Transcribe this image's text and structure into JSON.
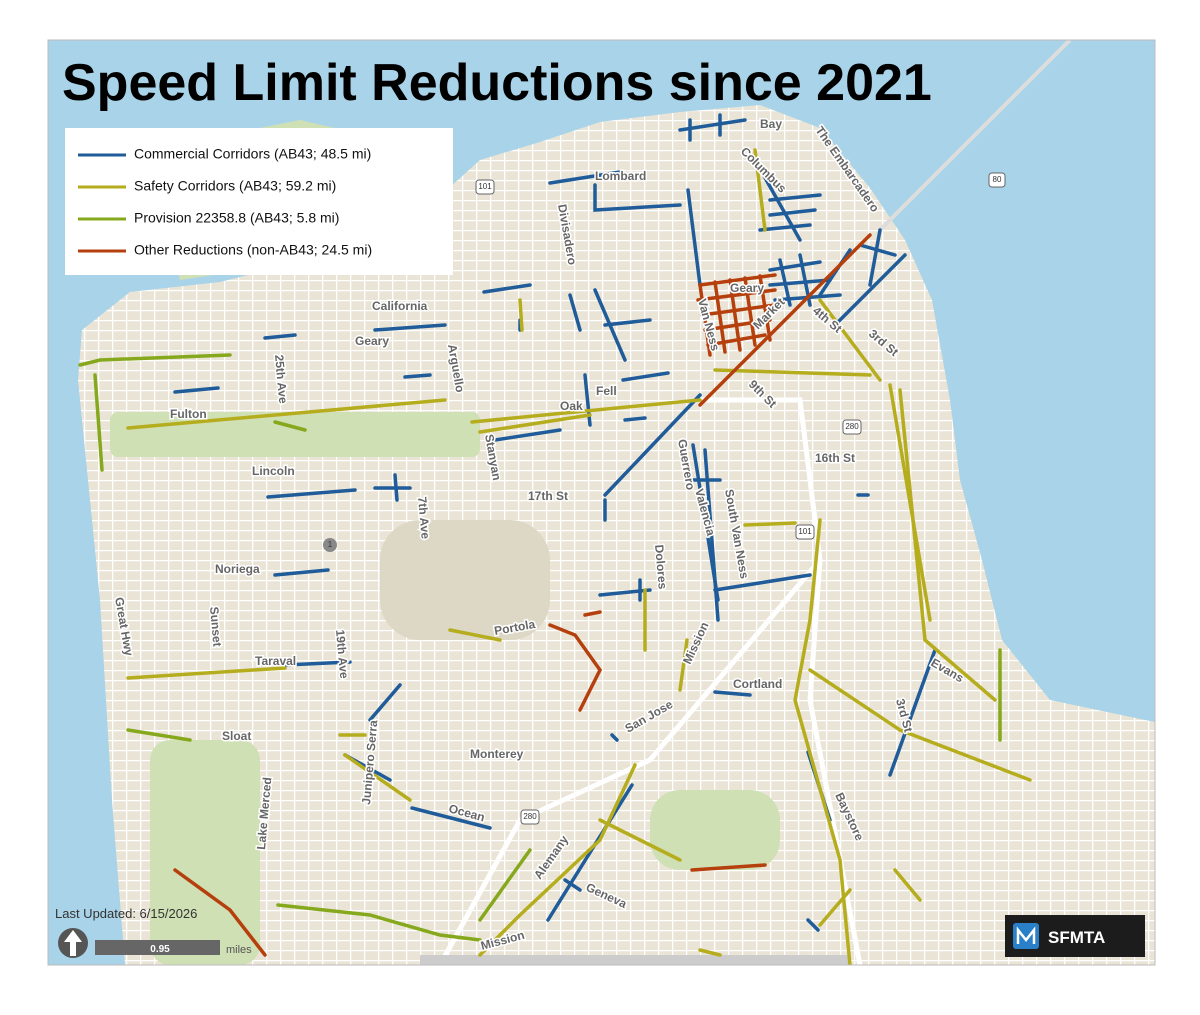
{
  "title": "Speed Limit Reductions since 2021",
  "legend": [
    {
      "label": "Commercial Corridors (AB43; 48.5 mi)",
      "color": "#1f5c99"
    },
    {
      "label": "Safety Corridors (AB43; 59.2 mi)",
      "color": "#b5ad1e"
    },
    {
      "label": "Provision 22358.8 (AB43; 5.8 mi)",
      "color": "#86a81c"
    },
    {
      "label": "Other Reductions (non-AB43; 24.5 mi)",
      "color": "#b5400d"
    }
  ],
  "street_labels": [
    "Bay",
    "The Embarcadero",
    "Lombard",
    "Columbus",
    "Divisadero",
    "California",
    "Geary",
    "Geary",
    "25th Ave",
    "Arguello",
    "Van Ness",
    "Market",
    "4th St",
    "3rd St",
    "Fulton",
    "Oak",
    "Fell",
    "9th St",
    "Stanyan",
    "Guerrero",
    "16th St",
    "Lincoln",
    "7th Ave",
    "17th St",
    "Valencia",
    "South Van Ness",
    "Noriega",
    "Dolores",
    "Great Hwy",
    "Sunset",
    "19th Ave",
    "Portola",
    "Mission",
    "Taraval",
    "Evans",
    "Cortland",
    "Sloat",
    "San Jose",
    "Monterey",
    "Ocean",
    "Baystore",
    "3rd St",
    "Junipero Serra",
    "Lake Merced",
    "Alemany",
    "Geneva",
    "Mission"
  ],
  "highway_shields": [
    "101",
    "80",
    "280",
    "101",
    "1",
    "280"
  ],
  "footer": {
    "last_updated": "Last Updated: 6/15/2026",
    "scale_value": "0.95",
    "scale_unit": "miles",
    "logo": "SFMTA"
  }
}
